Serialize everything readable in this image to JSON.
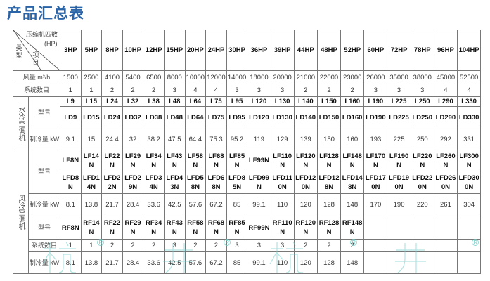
{
  "title": "产品汇总表",
  "header": {
    "corner_top": "压缩机匹数",
    "corner_hp": "(HP)",
    "corner_item": "项目",
    "corner_type": "类型",
    "columns": [
      "3HP",
      "5HP",
      "8HP",
      "10HP",
      "12HP",
      "15HP",
      "20HP",
      "24HP",
      "30HP",
      "36HP",
      "39HP",
      "44HP",
      "48HP",
      "52HP",
      "60HP",
      "72HP",
      "78HP",
      "96HP",
      "104HP"
    ]
  },
  "airflow": {
    "label": "风量 m³/h",
    "values": [
      "1500",
      "2500",
      "4100",
      "5400",
      "6500",
      "8000",
      "10000",
      "12000",
      "14000",
      "18000",
      "20000",
      "21000",
      "22000",
      "23000",
      "26000",
      "35000",
      "38000",
      "45000",
      "52500"
    ]
  },
  "systems": {
    "label": "系统数目",
    "values": [
      "1",
      "1",
      "2",
      "2",
      "2",
      "3",
      "4",
      "4",
      "3",
      "3",
      "3",
      "2",
      "2",
      "2",
      "3",
      "3",
      "3",
      "4",
      "4"
    ]
  },
  "water_cooled": {
    "label": "水冷空调机",
    "model_label": "型号",
    "models_l": [
      "L9",
      "L15",
      "L24",
      "L32",
      "L38",
      "L48",
      "L64",
      "L75",
      "L95",
      "L120",
      "L130",
      "L140",
      "L150",
      "L160",
      "L190",
      "L225",
      "L250",
      "L290",
      "L330"
    ],
    "models_ld": [
      "LD9",
      "LD15",
      "LD24",
      "LD32",
      "LD38",
      "LD48",
      "LD64",
      "LD75",
      "LD95",
      "LD120",
      "LD130",
      "LD140",
      "LD150",
      "LD160",
      "LD190",
      "LD225",
      "LD250",
      "LD290",
      "LD330"
    ],
    "cooling_label": "制冷量 kW",
    "cooling": [
      "9.1",
      "15",
      "24.4",
      "32",
      "38.2",
      "47.5",
      "64.4",
      "75.3",
      "95.2",
      "119",
      "129",
      "139",
      "150",
      "160",
      "193",
      "225",
      "250",
      "292",
      "331"
    ]
  },
  "air_cooled": {
    "label": "风冷空调机",
    "model_label": "型号",
    "models_lf": [
      "LF8N",
      "LF14N",
      "LF22N",
      "LF29N",
      "LF34N",
      "LF43N",
      "LF58N",
      "LF68N",
      "LF85N",
      "LF99N",
      "LF110N",
      "LF120N",
      "LF128N",
      "LF148N",
      "LF170N",
      "LF190N",
      "LF220N",
      "LF260N",
      "LF300N"
    ],
    "models_lfd": [
      "LFD8N",
      "LFD14N",
      "LFD22N",
      "LFD29N",
      "LFD34N",
      "LFD43N",
      "LFD58N",
      "LFD68N",
      "LFD85N",
      "LFD99N",
      "LFD110N",
      "LFD120N",
      "LFD128N",
      "LFD148N",
      "LFD170N",
      "LFD190N",
      "LFD220N",
      "LFD260N",
      "LFD300N"
    ],
    "cooling_label": "制冷量 kW",
    "cooling": [
      "8.1",
      "13.8",
      "21.7",
      "28.4",
      "33.6",
      "42.5",
      "57.6",
      "67.2",
      "85",
      "99.1",
      "110",
      "120",
      "128",
      "148",
      "170",
      "190",
      "220",
      "261",
      "304"
    ],
    "rf_model_label": "型号",
    "models_rf": [
      "RF8N",
      "RF14N",
      "RF22N",
      "RF29N",
      "RF34N",
      "RF43N",
      "RF58N",
      "RF68N",
      "RF85N",
      "RF99N",
      "RF110N",
      "RF120N",
      "RF128N",
      "RF148N",
      "",
      "",
      "",
      "",
      ""
    ],
    "rf_systems_label": "系统数目",
    "rf_systems": [
      "1",
      "1",
      "2",
      "2",
      "2",
      "3",
      "2",
      "2",
      "3",
      "3",
      "3",
      "2",
      "2",
      "2",
      "",
      "",
      "",
      "",
      ""
    ],
    "rf_cooling_label": "制冷量 kW",
    "rf_cooling": [
      "8.1",
      "13.8",
      "21.7",
      "28.4",
      "33.6",
      "42.5",
      "57.6",
      "67.2",
      "85",
      "99.1",
      "110",
      "120",
      "128",
      "148",
      "",
      "",
      "",
      "",
      ""
    ]
  },
  "watermark": {
    "text": "杭井",
    "mark": "®"
  }
}
